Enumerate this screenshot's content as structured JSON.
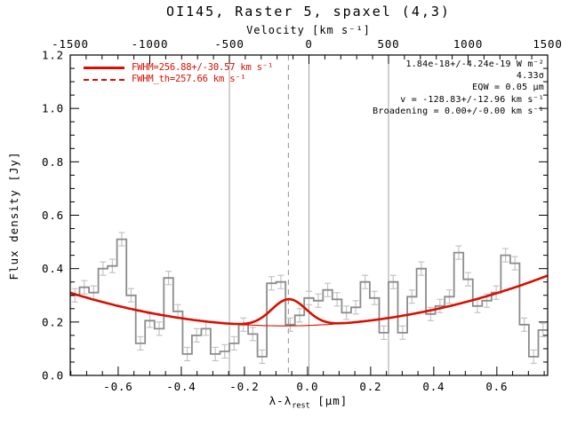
{
  "colors": {
    "fit_red": "#d90f00",
    "spectrum_gray": "#8c8c8c",
    "error_gray": "#c4c4c4",
    "ref_line_gray": "#a2a2a2",
    "frame_black": "#000000",
    "background": "#ffffff"
  },
  "chart_data": {
    "type": "line",
    "title": "OI145, Raster 5, spaxel (4,3)",
    "top_axis": {
      "label": "Velocity [km s⁻¹]",
      "range": [
        -1500,
        1500
      ],
      "minor_step": 100,
      "ticks": [
        {
          "v": -1500,
          "label": "-1500"
        },
        {
          "v": -1000,
          "label": "-1000"
        },
        {
          "v": -500,
          "label": "-500"
        },
        {
          "v": 0,
          "label": "0"
        },
        {
          "v": 500,
          "label": "500"
        },
        {
          "v": 1000,
          "label": "1000"
        },
        {
          "v": 1500,
          "label": "1500"
        }
      ]
    },
    "x_axis": {
      "label": "λ-λrest [μm]",
      "label_parts": {
        "main": "λ-λ",
        "sub": "rest",
        "unit": " [μm]"
      },
      "range": [
        -0.752,
        0.761
      ],
      "minor_step": 0.05,
      "ticks": [
        {
          "v": -0.6,
          "label": "-0.6"
        },
        {
          "v": -0.4,
          "label": "-0.4"
        },
        {
          "v": -0.2,
          "label": "-0.2"
        },
        {
          "v": 0.0,
          "label": "0.0"
        },
        {
          "v": 0.2,
          "label": "0.2"
        },
        {
          "v": 0.4,
          "label": "0.4"
        },
        {
          "v": 0.6,
          "label": "0.6"
        }
      ]
    },
    "y_axis": {
      "label": "Flux density [Jy]",
      "range": [
        0.0,
        1.2
      ],
      "minor_step": 0.05,
      "ticks": [
        {
          "v": 0.0,
          "label": "0.0"
        },
        {
          "v": 0.2,
          "label": "0.2"
        },
        {
          "v": 0.4,
          "label": "0.4"
        },
        {
          "v": 0.6,
          "label": "0.6"
        },
        {
          "v": 0.8,
          "label": "0.8"
        },
        {
          "v": 1.0,
          "label": "1.0"
        },
        {
          "v": 1.2,
          "label": "1.2"
        }
      ]
    },
    "spectrum": {
      "lambda_start": -0.752,
      "lambda_end": 0.761,
      "flux_error_jy": 0.025,
      "values_jy": [
        0.3,
        0.33,
        0.31,
        0.4,
        0.41,
        0.51,
        0.3,
        0.12,
        0.205,
        0.175,
        0.365,
        0.24,
        0.08,
        0.15,
        0.175,
        0.08,
        0.09,
        0.12,
        0.19,
        0.155,
        0.07,
        0.345,
        0.35,
        0.19,
        0.225,
        0.29,
        0.28,
        0.32,
        0.285,
        0.235,
        0.255,
        0.35,
        0.29,
        0.16,
        0.35,
        0.16,
        0.295,
        0.4,
        0.23,
        0.26,
        0.295,
        0.46,
        0.36,
        0.26,
        0.28,
        0.31,
        0.45,
        0.42,
        0.19,
        0.07,
        0.17
      ]
    },
    "fit": {
      "continuum_poly_jy": [
        0.187,
        0.04,
        0.27
      ],
      "gaussian": {
        "center_um": -0.059,
        "sigma_um": 0.055,
        "amplitude_jy": 0.1
      }
    },
    "reference_lines": {
      "solid_velocities_kms": [
        -500,
        0,
        500
      ],
      "dashed_velocities_kms": [
        -128.83
      ]
    },
    "legend": [
      {
        "style": "solid",
        "label": "FWHM=256.88+/-30.57 km s⁻¹"
      },
      {
        "style": "dashed",
        "label": "FWHM_th=257.66 km s⁻¹"
      }
    ],
    "annotations": [
      "1.84e-18+/-4.24e-19 W m⁻²",
      "4.33σ",
      "EQW = 0.05 μm",
      "v = -128.83+/-12.96 km s⁻¹",
      "Broadening = 0.00+/-0.00 km s⁻¹"
    ]
  }
}
